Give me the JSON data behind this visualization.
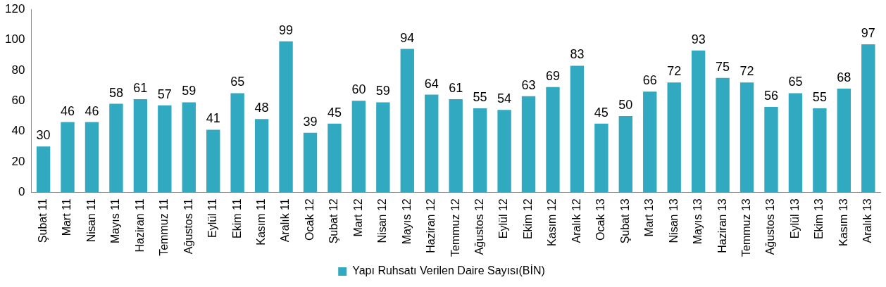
{
  "chart_data": {
    "type": "bar",
    "categories": [
      "Şubat 11",
      "Mart 11",
      "Nisan 11",
      "Mayıs 11",
      "Haziran 11",
      "Temmuz 11",
      "Ağustos 11",
      "Eylül 11",
      "Ekim 11",
      "Kasım 11",
      "Aralık 11",
      "Ocak 12",
      "Şubat 12",
      "Mart 12",
      "Nisan 12",
      "Mayıs 12",
      "Haziran 12",
      "Temmuz 12",
      "Ağustos 12",
      "Eylül 12",
      "Ekim 12",
      "Kasım 12",
      "Aralık 12",
      "Ocak 13",
      "Şubat 13",
      "Mart 13",
      "Nisan 13",
      "Mayıs 13",
      "Haziran 13",
      "Temmuz 13",
      "Ağustos 13",
      "Eylül 13",
      "Ekim 13",
      "Kasım 13",
      "Aralık 13"
    ],
    "series": [
      {
        "name": "Yapı Ruhsatı Verilen Daire Sayısı(BİN)",
        "color": "#31a9c1",
        "values": [
          30,
          46,
          46,
          58,
          61,
          57,
          59,
          41,
          65,
          48,
          99,
          39,
          45,
          60,
          59,
          94,
          64,
          61,
          55,
          54,
          63,
          69,
          83,
          45,
          50,
          66,
          72,
          93,
          75,
          72,
          56,
          65,
          55,
          68,
          97
        ]
      }
    ],
    "ylim": [
      0,
      120
    ],
    "yticks": [
      0,
      20,
      40,
      60,
      80,
      100,
      120
    ],
    "grid": false,
    "legend": "bottom",
    "data_labels": true
  }
}
